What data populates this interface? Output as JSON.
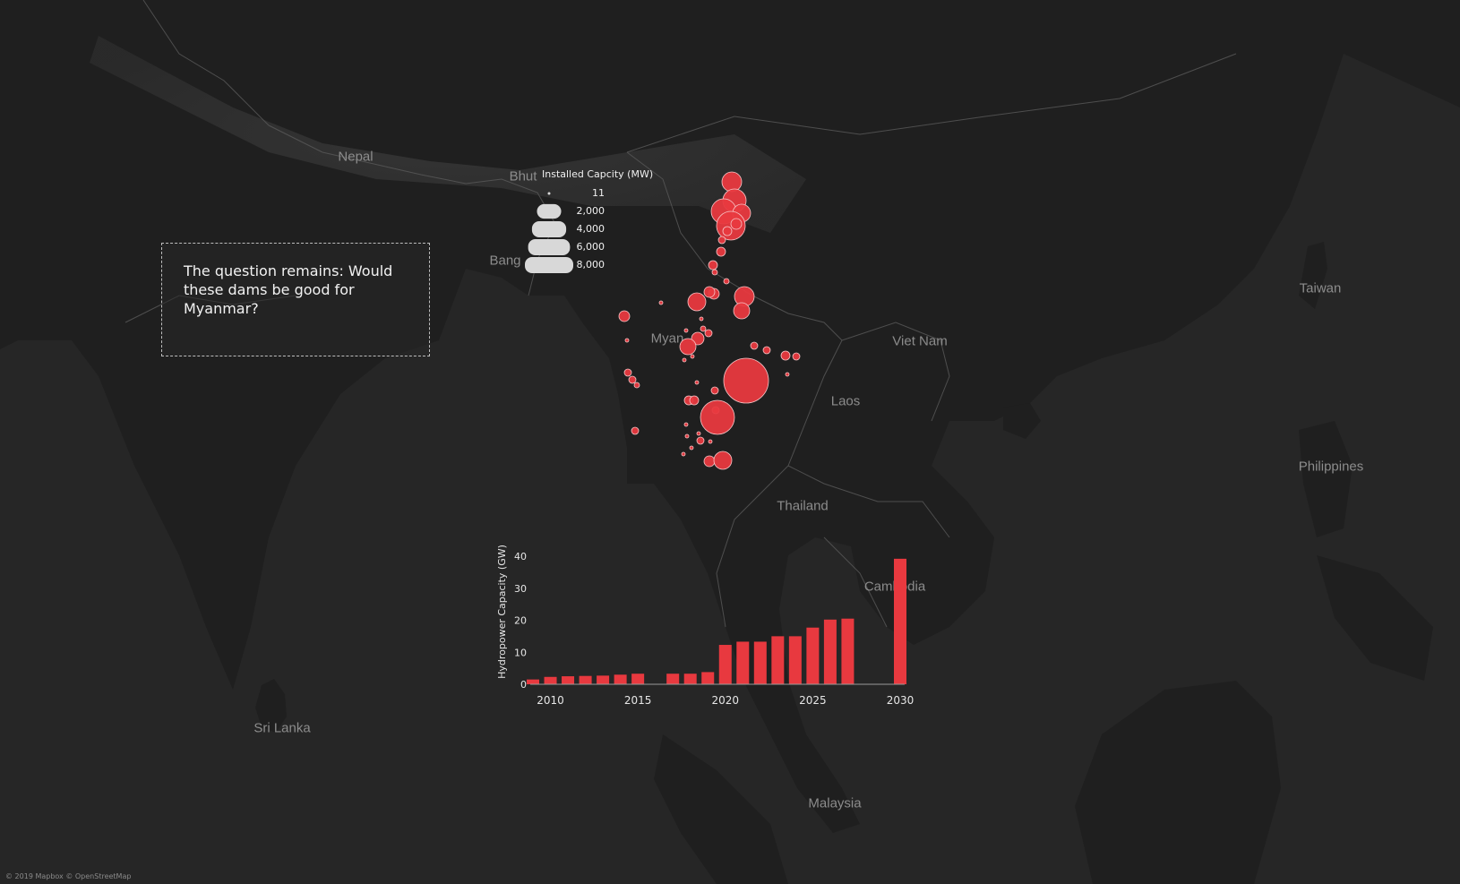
{
  "map": {
    "country_labels": [
      {
        "id": "nepal",
        "text": "Nepal"
      },
      {
        "id": "bhutan",
        "text": "Bhut"
      },
      {
        "id": "bangladesh",
        "text": "Bang"
      },
      {
        "id": "myanmar",
        "text": "Myan"
      },
      {
        "id": "viet-nam",
        "text": "Viet Nam"
      },
      {
        "id": "laos",
        "text": "Laos"
      },
      {
        "id": "thailand",
        "text": "Thailand"
      },
      {
        "id": "cambodia",
        "text": "Cambodia"
      },
      {
        "id": "taiwan",
        "text": "Taiwan"
      },
      {
        "id": "philippines",
        "text": "Philippines"
      },
      {
        "id": "malaysia",
        "text": "Malaysia"
      },
      {
        "id": "sri-lanka",
        "text": "Sri Lanka"
      }
    ],
    "dam_marker_color": "#e8393f",
    "attribution": "© 2019 Mapbox © OpenStreetMap"
  },
  "callout": {
    "text": "The question remains: Would these dams be good for Myanmar?"
  },
  "size_legend": {
    "title": "Installed Capcity (MW)",
    "entries": [
      {
        "label": "11",
        "value": 11
      },
      {
        "label": "2,000",
        "value": 2000
      },
      {
        "label": "4,000",
        "value": 4000
      },
      {
        "label": "6,000",
        "value": 6000
      },
      {
        "label": "8,000",
        "value": 8000
      }
    ]
  },
  "chart_data": {
    "type": "bar",
    "ylabel": "Hydropower Capacity (GW)",
    "xlabel": "",
    "ylim": [
      0,
      40
    ],
    "yticks": [
      0,
      10,
      20,
      30,
      40
    ],
    "xticks": [
      2010,
      2015,
      2020,
      2025,
      2030
    ],
    "categories": [
      2009,
      2010,
      2011,
      2012,
      2013,
      2014,
      2015,
      2016,
      2017,
      2018,
      2019,
      2020,
      2021,
      2022,
      2023,
      2024,
      2025,
      2026,
      2027,
      2028,
      2029,
      2030
    ],
    "values": [
      1.5,
      2.3,
      2.5,
      2.6,
      2.7,
      3.0,
      3.3,
      0,
      3.3,
      3.3,
      3.8,
      12.3,
      13.3,
      13.3,
      15.0,
      15.0,
      17.7,
      20.2,
      20.5,
      0,
      0,
      39.2
    ],
    "color": "#e8393f",
    "grid": false
  }
}
